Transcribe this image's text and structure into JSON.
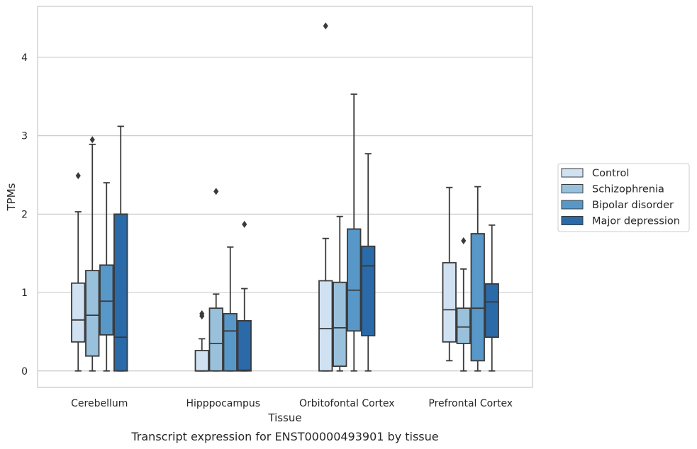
{
  "chart_data": {
    "type": "box",
    "title": "",
    "caption": "Transcript expression for ENST00000493901 by tissue",
    "xlabel": "Tissue",
    "ylabel": "TPMs",
    "ylim": [
      -0.21,
      4.65
    ],
    "yticks": [
      0,
      1,
      2,
      3,
      4
    ],
    "grid": true,
    "legend_position": "right",
    "categories": [
      "Cerebellum",
      "Hipppocampus",
      "Orbitofontal Cortex",
      "Prefrontal Cortex"
    ],
    "series": [
      {
        "name": "Control",
        "color": "#d0e1f2",
        "boxes": [
          {
            "whisker_low": 0.0,
            "q1": 0.37,
            "median": 0.65,
            "q3": 1.12,
            "whisker_high": 2.03,
            "outliers": [
              2.49
            ]
          },
          {
            "whisker_low": 0.0,
            "q1": 0.0,
            "median": 0.0,
            "q3": 0.26,
            "whisker_high": 0.41,
            "outliers": [
              0.7,
              0.73
            ]
          },
          {
            "whisker_low": 0.0,
            "q1": 0.0,
            "median": 0.54,
            "q3": 1.15,
            "whisker_high": 1.69,
            "outliers": [
              4.4
            ]
          },
          {
            "whisker_low": 0.13,
            "q1": 0.37,
            "median": 0.78,
            "q3": 1.38,
            "whisker_high": 2.34,
            "outliers": []
          }
        ]
      },
      {
        "name": "Schizophrenia",
        "color": "#9ac1dc",
        "boxes": [
          {
            "whisker_low": 0.0,
            "q1": 0.19,
            "median": 0.71,
            "q3": 1.28,
            "whisker_high": 2.89,
            "outliers": [
              2.95
            ]
          },
          {
            "whisker_low": 0.0,
            "q1": 0.0,
            "median": 0.35,
            "q3": 0.8,
            "whisker_high": 0.98,
            "outliers": [
              2.29
            ]
          },
          {
            "whisker_low": 0.0,
            "q1": 0.06,
            "median": 0.55,
            "q3": 1.13,
            "whisker_high": 1.97,
            "outliers": []
          },
          {
            "whisker_low": 0.0,
            "q1": 0.35,
            "median": 0.56,
            "q3": 0.8,
            "whisker_high": 1.3,
            "outliers": [
              1.66
            ]
          }
        ]
      },
      {
        "name": "Bipolar disorder",
        "color": "#5898c8",
        "boxes": [
          {
            "whisker_low": 0.0,
            "q1": 0.46,
            "median": 0.89,
            "q3": 1.35,
            "whisker_high": 2.4,
            "outliers": []
          },
          {
            "whisker_low": 0.0,
            "q1": 0.0,
            "median": 0.51,
            "q3": 0.73,
            "whisker_high": 1.58,
            "outliers": []
          },
          {
            "whisker_low": 0.0,
            "q1": 0.51,
            "median": 1.03,
            "q3": 1.81,
            "whisker_high": 3.53,
            "outliers": []
          },
          {
            "whisker_low": 0.0,
            "q1": 0.13,
            "median": 0.8,
            "q3": 1.75,
            "whisker_high": 2.35,
            "outliers": []
          }
        ]
      },
      {
        "name": "Major depression",
        "color": "#2a6aa9",
        "boxes": [
          {
            "whisker_low": 0.0,
            "q1": 0.0,
            "median": 0.43,
            "q3": 2.0,
            "whisker_high": 3.12,
            "outliers": []
          },
          {
            "whisker_low": 0.0,
            "q1": 0.0,
            "median": 0.01,
            "q3": 0.64,
            "whisker_high": 1.05,
            "outliers": [
              1.87
            ]
          },
          {
            "whisker_low": 0.0,
            "q1": 0.45,
            "median": 1.34,
            "q3": 1.59,
            "whisker_high": 2.77,
            "outliers": []
          },
          {
            "whisker_low": 0.0,
            "q1": 0.43,
            "median": 0.88,
            "q3": 1.11,
            "whisker_high": 1.86,
            "outliers": []
          }
        ]
      }
    ]
  }
}
